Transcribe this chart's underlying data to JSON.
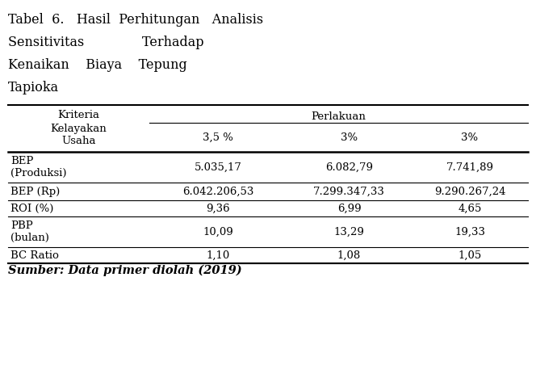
{
  "title_lines": [
    "Tabel  6.   Hasil  Perhitungan   Analisis",
    "Sensitivitas              Terhadap",
    "Kenaikan    Biaya    Tepung",
    "Tapioka"
  ],
  "col_header_main": "Kriteria\nKelayakan\nUsaha",
  "col_header_perlakuan": "Perlakuan",
  "col_sub": [
    "3,5 %",
    "3%",
    "3%"
  ],
  "rows": [
    [
      "BEP\n(Produksi)",
      "5.035,17",
      "6.082,79",
      "7.741,89"
    ],
    [
      "BEP (Rp)",
      "6.042.206,53",
      "7.299.347,33",
      "9.290.267,24"
    ],
    [
      "ROI (%)",
      "9,36",
      "6,99",
      "4,65"
    ],
    [
      "PBP\n(bulan)",
      "10,09",
      "13,29",
      "19,33"
    ],
    [
      "BC Ratio",
      "1,10",
      "1,08",
      "1,05"
    ]
  ],
  "footer": "Sumber: Data primer diolah (2019)",
  "bg_color": "#ffffff",
  "text_color": "#000000",
  "font_size": 9.5,
  "title_font_size": 11.5
}
